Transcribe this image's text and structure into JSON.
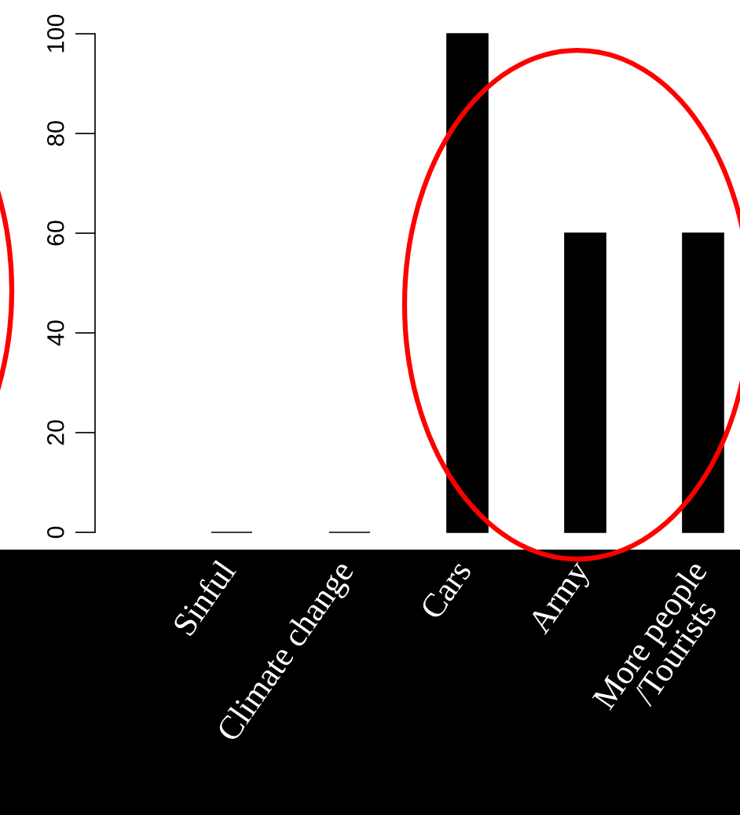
{
  "chart_data": {
    "type": "bar",
    "categories": [
      "Sinful",
      "Climate change",
      "Cars",
      "Army",
      "More people\n/Tourists"
    ],
    "values": [
      0,
      0,
      100,
      60,
      60
    ],
    "color": "#000000",
    "ylim": [
      0,
      100
    ],
    "yticks": [
      0,
      20,
      40,
      60,
      80,
      100
    ]
  }
}
